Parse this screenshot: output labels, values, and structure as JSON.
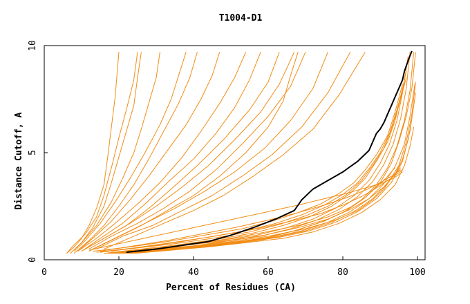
{
  "chart_data": {
    "type": "line",
    "title": "T1004-D1",
    "xlabel": "Percent of Residues (CA)",
    "ylabel": "Distance Cutoff, A",
    "xlim": [
      0,
      100
    ],
    "ylim": [
      0,
      10
    ],
    "x_ticks": [
      0,
      20,
      40,
      60,
      80,
      100
    ],
    "y_ticks": [
      0,
      5,
      10
    ],
    "grid": false,
    "legend": "none",
    "colors": {
      "highlight": "#000000",
      "others": "#f28c14",
      "axes": "#000000",
      "background": "#ffffff"
    },
    "series": [
      {
        "highlight": true,
        "x": [
          22,
          30,
          38,
          44,
          50,
          56,
          62,
          67,
          69,
          72,
          76,
          80,
          84,
          87,
          88,
          89,
          90,
          91,
          92,
          93,
          94,
          95,
          96,
          96.5,
          97.5,
          98.5
        ],
        "y": [
          0.35,
          0.5,
          0.7,
          0.85,
          1.15,
          1.5,
          1.9,
          2.3,
          2.8,
          3.3,
          3.7,
          4.1,
          4.6,
          5.1,
          5.5,
          5.9,
          6.1,
          6.4,
          6.8,
          7.2,
          7.6,
          8.0,
          8.4,
          8.8,
          9.3,
          9.75
        ]
      },
      {
        "x": [
          6,
          8,
          10,
          12,
          14,
          16,
          17,
          18,
          19,
          20
        ],
        "y": [
          0.3,
          0.6,
          1.0,
          1.6,
          2.4,
          3.5,
          4.8,
          6.2,
          7.6,
          9.7
        ]
      },
      {
        "x": [
          6,
          8,
          11,
          14,
          16,
          18,
          20,
          22,
          24,
          25
        ],
        "y": [
          0.3,
          0.7,
          1.2,
          2.0,
          3.0,
          4.3,
          5.7,
          7.0,
          8.4,
          9.7
        ]
      },
      {
        "x": [
          7,
          10,
          13,
          16,
          18,
          20,
          22,
          24,
          25,
          26
        ],
        "y": [
          0.3,
          0.8,
          1.5,
          2.5,
          3.6,
          4.8,
          6.0,
          7.2,
          8.5,
          9.7
        ]
      },
      {
        "x": [
          7,
          10,
          14,
          18,
          21,
          24,
          26,
          28,
          30,
          31
        ],
        "y": [
          0.3,
          0.8,
          1.6,
          2.7,
          3.8,
          5.0,
          6.1,
          7.3,
          8.5,
          9.7
        ]
      },
      {
        "x": [
          8,
          11,
          15,
          19,
          23,
          27,
          31,
          34,
          36,
          38
        ],
        "y": [
          0.4,
          0.9,
          1.7,
          2.7,
          3.8,
          5.0,
          6.3,
          7.5,
          8.6,
          9.7
        ]
      },
      {
        "x": [
          8,
          12,
          16,
          20,
          24,
          28,
          32,
          36,
          39,
          41
        ],
        "y": [
          0.3,
          0.9,
          1.6,
          2.5,
          3.5,
          4.7,
          6.0,
          7.3,
          8.5,
          9.7
        ]
      },
      {
        "x": [
          9,
          13,
          18,
          23,
          28,
          33,
          38,
          42,
          45,
          47
        ],
        "y": [
          0.4,
          1.0,
          1.8,
          2.8,
          3.9,
          5.1,
          6.3,
          7.5,
          8.6,
          9.7
        ]
      },
      {
        "x": [
          9,
          14,
          19,
          25,
          31,
          37,
          42,
          47,
          51,
          54
        ],
        "y": [
          0.4,
          1.0,
          1.7,
          2.6,
          3.6,
          4.8,
          6.0,
          7.3,
          8.5,
          9.7
        ]
      },
      {
        "x": [
          10,
          15,
          21,
          27,
          33,
          40,
          46,
          51,
          55,
          58
        ],
        "y": [
          0.4,
          1.0,
          1.7,
          2.6,
          3.6,
          4.7,
          5.9,
          7.1,
          8.4,
          9.7
        ]
      },
      {
        "x": [
          10,
          16,
          22,
          28,
          34,
          41,
          48,
          55,
          60,
          63
        ],
        "y": [
          0.4,
          1.0,
          1.6,
          2.4,
          3.3,
          4.4,
          5.6,
          7.0,
          8.3,
          9.7
        ]
      },
      {
        "x": [
          11,
          17,
          23,
          30,
          37,
          44,
          51,
          58,
          63,
          67
        ],
        "y": [
          0.5,
          1.1,
          1.7,
          2.5,
          3.4,
          4.4,
          5.6,
          6.9,
          8.2,
          9.7
        ]
      },
      {
        "x": [
          12,
          18,
          25,
          32,
          39,
          46,
          53,
          60,
          66,
          70
        ],
        "y": [
          0.5,
          1.1,
          1.7,
          2.4,
          3.2,
          4.2,
          5.4,
          6.7,
          8.1,
          9.7
        ]
      },
      {
        "x": [
          12,
          19,
          26,
          33,
          40,
          47,
          54,
          60,
          64,
          66,
          68
        ],
        "y": [
          0.4,
          1.0,
          1.6,
          2.3,
          3.0,
          3.9,
          5.0,
          6.2,
          7.4,
          8.6,
          9.7
        ]
      },
      {
        "x": [
          13,
          20,
          27,
          35,
          43,
          51,
          59,
          66,
          72,
          76
        ],
        "y": [
          0.5,
          1.1,
          1.7,
          2.4,
          3.2,
          4.1,
          5.2,
          6.5,
          8.0,
          9.7
        ]
      },
      {
        "x": [
          14,
          21,
          29,
          37,
          45,
          53,
          61,
          69,
          76,
          82
        ],
        "y": [
          0.5,
          1.1,
          1.6,
          2.3,
          3.0,
          3.9,
          4.9,
          6.2,
          7.8,
          9.7
        ]
      },
      {
        "x": [
          16,
          24,
          32,
          40,
          48,
          56,
          64,
          72,
          79,
          86
        ],
        "y": [
          0.5,
          1.1,
          1.7,
          2.3,
          3.0,
          3.9,
          4.9,
          6.1,
          7.7,
          9.7
        ]
      },
      {
        "x": [
          20,
          30,
          40,
          50,
          60,
          68,
          75,
          81,
          86,
          90,
          93,
          95,
          97,
          98.5,
          99.5
        ],
        "y": [
          0.3,
          0.45,
          0.6,
          0.8,
          1.05,
          1.4,
          1.8,
          2.3,
          2.9,
          3.6,
          4.5,
          5.5,
          6.7,
          8.0,
          9.7
        ]
      },
      {
        "x": [
          19,
          29,
          39,
          49,
          59,
          67,
          74,
          80,
          85,
          89,
          92,
          94.5,
          96.5,
          98,
          99
        ],
        "y": [
          0.3,
          0.45,
          0.6,
          0.8,
          1.0,
          1.35,
          1.75,
          2.2,
          2.8,
          3.5,
          4.3,
          5.3,
          6.5,
          7.9,
          9.7
        ]
      },
      {
        "x": [
          18,
          28,
          38,
          48,
          58,
          66,
          73,
          79,
          84,
          88,
          91,
          93.5,
          95.5,
          97,
          98
        ],
        "y": [
          0.3,
          0.45,
          0.6,
          0.85,
          1.1,
          1.45,
          1.85,
          2.35,
          2.95,
          3.65,
          4.45,
          5.4,
          6.6,
          8.0,
          9.7
        ]
      },
      {
        "x": [
          17,
          27,
          37,
          47,
          57,
          65,
          72,
          78,
          83,
          87,
          90,
          92.5,
          94.5,
          96,
          97.5
        ],
        "y": [
          0.3,
          0.45,
          0.65,
          0.9,
          1.15,
          1.5,
          1.9,
          2.4,
          3.0,
          3.7,
          4.5,
          5.4,
          6.5,
          7.8,
          9.5
        ]
      },
      {
        "x": [
          16,
          26,
          36,
          46,
          56,
          64,
          71,
          77,
          82,
          86,
          89,
          92,
          94,
          95.5,
          97
        ],
        "y": [
          0.3,
          0.5,
          0.7,
          0.95,
          1.25,
          1.6,
          2.0,
          2.5,
          3.1,
          3.8,
          4.6,
          5.5,
          6.5,
          7.6,
          8.8
        ]
      },
      {
        "x": [
          15,
          25,
          35,
          45,
          55,
          63,
          70,
          76,
          81,
          85,
          88,
          91,
          93,
          95,
          97
        ],
        "y": [
          0.35,
          0.55,
          0.75,
          1.0,
          1.3,
          1.65,
          2.05,
          2.5,
          3.05,
          3.7,
          4.4,
          5.2,
          6.1,
          7.2,
          8.5
        ]
      },
      {
        "x": [
          14,
          24,
          34,
          44,
          54,
          62,
          69,
          75,
          80,
          84,
          87,
          90,
          92.5,
          94.5,
          96.5
        ],
        "y": [
          0.35,
          0.55,
          0.8,
          1.05,
          1.35,
          1.7,
          2.1,
          2.55,
          3.05,
          3.6,
          4.25,
          5.0,
          5.9,
          7.0,
          8.3
        ]
      },
      {
        "x": [
          13,
          23,
          33,
          43,
          53,
          61,
          68,
          74,
          79,
          83,
          86,
          89,
          92,
          94,
          96
        ],
        "y": [
          0.4,
          0.6,
          0.85,
          1.15,
          1.45,
          1.8,
          2.2,
          2.6,
          3.1,
          3.6,
          4.2,
          4.9,
          5.8,
          6.9,
          8.2
        ]
      },
      {
        "x": [
          22,
          32,
          42,
          52,
          62,
          70,
          77,
          83,
          88,
          92,
          95,
          97,
          98.5,
          99.5
        ],
        "y": [
          0.3,
          0.45,
          0.6,
          0.8,
          1.05,
          1.35,
          1.75,
          2.25,
          2.85,
          3.55,
          4.4,
          5.5,
          6.8,
          8.3
        ]
      },
      {
        "x": [
          21,
          31,
          41,
          51,
          61,
          69,
          76,
          82,
          87,
          91,
          94,
          96.5,
          98,
          99.3
        ],
        "y": [
          0.3,
          0.45,
          0.6,
          0.8,
          1.05,
          1.35,
          1.75,
          2.25,
          2.85,
          3.55,
          4.35,
          5.4,
          6.7,
          8.2
        ]
      },
      {
        "x": [
          23,
          33,
          43,
          53,
          63,
          71,
          78,
          84,
          89,
          93,
          96,
          98,
          99.5
        ],
        "y": [
          0.3,
          0.45,
          0.6,
          0.8,
          1.05,
          1.35,
          1.75,
          2.25,
          2.85,
          3.6,
          4.6,
          6.0,
          7.8
        ]
      },
      {
        "x": [
          20,
          30,
          40,
          50,
          60,
          70,
          78,
          84,
          88,
          91,
          93,
          94.5,
          95.5
        ],
        "y": [
          0.35,
          0.5,
          0.65,
          0.85,
          1.1,
          1.45,
          1.85,
          2.3,
          2.8,
          3.3,
          3.8,
          4.1,
          4.3
        ]
      },
      {
        "x": [
          18,
          28,
          38,
          48,
          58,
          68,
          76,
          82,
          86,
          89,
          91.5,
          93,
          94
        ],
        "y": [
          0.35,
          0.5,
          0.7,
          0.95,
          1.25,
          1.6,
          2.0,
          2.45,
          2.9,
          3.4,
          3.8,
          4.1,
          4.3
        ]
      },
      {
        "x": [
          15,
          24,
          33,
          42,
          51,
          60,
          68,
          75,
          81,
          86,
          90,
          93,
          95.5
        ],
        "y": [
          0.4,
          0.65,
          0.9,
          1.2,
          1.5,
          1.85,
          2.2,
          2.55,
          2.9,
          3.25,
          3.6,
          3.9,
          4.2
        ]
      },
      {
        "x": [
          17,
          27,
          37,
          47,
          57,
          66,
          74,
          80,
          85,
          89,
          92,
          94.5,
          96
        ],
        "y": [
          0.4,
          0.6,
          0.85,
          1.15,
          1.45,
          1.8,
          2.15,
          2.55,
          2.95,
          3.35,
          3.7,
          4.0,
          4.2
        ]
      },
      {
        "x": [
          19,
          29,
          39,
          49,
          59,
          68,
          76,
          82,
          87,
          91,
          94,
          96,
          97.5,
          98.5
        ],
        "y": [
          0.35,
          0.5,
          0.7,
          0.9,
          1.15,
          1.5,
          1.9,
          2.35,
          2.85,
          3.4,
          4.0,
          4.7,
          5.6,
          6.6
        ]
      },
      {
        "x": [
          24,
          34,
          44,
          54,
          64,
          72,
          79,
          85,
          90,
          94,
          96.5,
          98,
          99
        ],
        "y": [
          0.3,
          0.45,
          0.6,
          0.8,
          1.0,
          1.3,
          1.7,
          2.2,
          2.8,
          3.5,
          4.4,
          5.3,
          6.2
        ]
      },
      {
        "x": [
          12,
          20,
          28,
          36,
          44,
          52,
          60,
          68,
          75,
          81,
          86,
          90,
          93.5,
          96
        ],
        "y": [
          0.45,
          0.75,
          1.05,
          1.35,
          1.65,
          1.95,
          2.25,
          2.55,
          2.85,
          3.1,
          3.35,
          3.55,
          3.8,
          4.1
        ]
      }
    ]
  }
}
